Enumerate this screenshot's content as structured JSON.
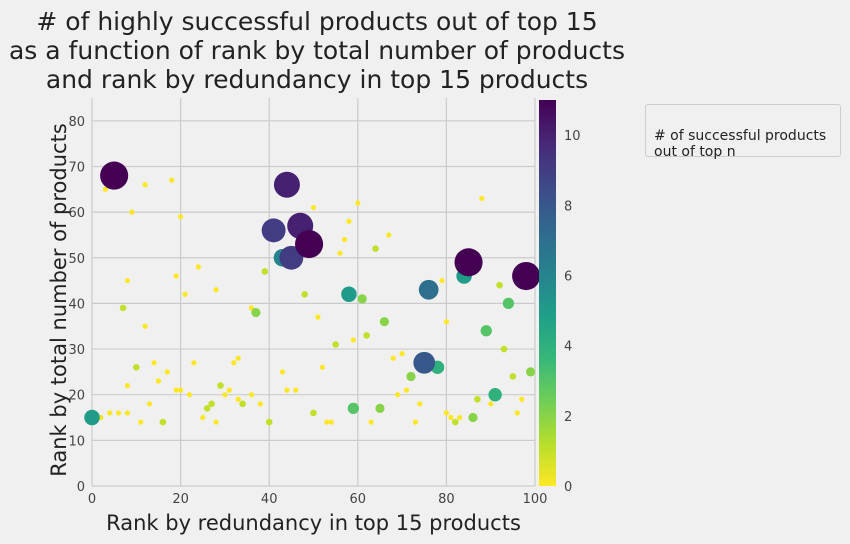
{
  "chart_data": {
    "type": "scatter",
    "title": "# of highly successful products out of top 15\nas a function of rank by total number of products\nand rank by redundancy in top 15 products",
    "xlabel": "Rank by redundancy in top 15 products",
    "ylabel": "Rank by total number of products",
    "xlim": [
      0,
      100
    ],
    "ylim": [
      0,
      85
    ],
    "xticks": [
      0,
      20,
      40,
      60,
      80,
      100
    ],
    "yticks": [
      0,
      10,
      20,
      30,
      40,
      50,
      60,
      70,
      80
    ],
    "grid": true,
    "colorbar": {
      "colormap": "viridis_r",
      "range": [
        0,
        11
      ],
      "ticks": [
        0,
        2,
        4,
        6,
        8,
        10
      ]
    },
    "legend": {
      "title": "# of successful products\n out of top n",
      "placement": "outside-right"
    },
    "points": [
      {
        "x": 5,
        "y": 68,
        "v": 11
      },
      {
        "x": 44,
        "y": 66,
        "v": 10
      },
      {
        "x": 41,
        "y": 56,
        "v": 9
      },
      {
        "x": 47,
        "y": 57,
        "v": 10
      },
      {
        "x": 49,
        "y": 53,
        "v": 11
      },
      {
        "x": 45,
        "y": 50,
        "v": 9
      },
      {
        "x": 43,
        "y": 50,
        "v": 6
      },
      {
        "x": 85,
        "y": 49,
        "v": 11
      },
      {
        "x": 98,
        "y": 46,
        "v": 11
      },
      {
        "x": 84,
        "y": 46,
        "v": 5
      },
      {
        "x": 76,
        "y": 43,
        "v": 7
      },
      {
        "x": 75,
        "y": 27,
        "v": 8
      },
      {
        "x": 58,
        "y": 42,
        "v": 5
      },
      {
        "x": 0,
        "y": 15,
        "v": 5
      },
      {
        "x": 78,
        "y": 26,
        "v": 4
      },
      {
        "x": 91,
        "y": 20,
        "v": 4
      },
      {
        "x": 94,
        "y": 40,
        "v": 3
      },
      {
        "x": 89,
        "y": 34,
        "v": 3
      },
      {
        "x": 61,
        "y": 41,
        "v": 2
      },
      {
        "x": 66,
        "y": 36,
        "v": 2
      },
      {
        "x": 72,
        "y": 24,
        "v": 2
      },
      {
        "x": 59,
        "y": 17,
        "v": 3
      },
      {
        "x": 65,
        "y": 17,
        "v": 2
      },
      {
        "x": 86,
        "y": 15,
        "v": 2
      },
      {
        "x": 99,
        "y": 25,
        "v": 2
      },
      {
        "x": 37,
        "y": 38,
        "v": 2
      },
      {
        "x": 3,
        "y": 65,
        "v": 0
      },
      {
        "x": 12,
        "y": 66,
        "v": 0
      },
      {
        "x": 18,
        "y": 67,
        "v": 0
      },
      {
        "x": 9,
        "y": 60,
        "v": 0
      },
      {
        "x": 20,
        "y": 59,
        "v": 0
      },
      {
        "x": 45,
        "y": 64,
        "v": 0
      },
      {
        "x": 50,
        "y": 61,
        "v": 0
      },
      {
        "x": 60,
        "y": 62,
        "v": 0
      },
      {
        "x": 58,
        "y": 58,
        "v": 0
      },
      {
        "x": 67,
        "y": 55,
        "v": 0
      },
      {
        "x": 64,
        "y": 52,
        "v": 1
      },
      {
        "x": 57,
        "y": 54,
        "v": 0
      },
      {
        "x": 56,
        "y": 51,
        "v": 0
      },
      {
        "x": 24,
        "y": 48,
        "v": 0
      },
      {
        "x": 19,
        "y": 46,
        "v": 0
      },
      {
        "x": 8,
        "y": 45,
        "v": 0
      },
      {
        "x": 28,
        "y": 43,
        "v": 0
      },
      {
        "x": 21,
        "y": 42,
        "v": 0
      },
      {
        "x": 39,
        "y": 47,
        "v": 1
      },
      {
        "x": 48,
        "y": 42,
        "v": 1
      },
      {
        "x": 7,
        "y": 39,
        "v": 1
      },
      {
        "x": 36,
        "y": 39,
        "v": 0
      },
      {
        "x": 51,
        "y": 37,
        "v": 0
      },
      {
        "x": 12,
        "y": 35,
        "v": 0
      },
      {
        "x": 55,
        "y": 31,
        "v": 1
      },
      {
        "x": 59,
        "y": 32,
        "v": 0
      },
      {
        "x": 62,
        "y": 33,
        "v": 1
      },
      {
        "x": 80,
        "y": 36,
        "v": 0
      },
      {
        "x": 92,
        "y": 44,
        "v": 1
      },
      {
        "x": 88,
        "y": 63,
        "v": 0
      },
      {
        "x": 93,
        "y": 30,
        "v": 1
      },
      {
        "x": 70,
        "y": 29,
        "v": 0
      },
      {
        "x": 68,
        "y": 28,
        "v": 0
      },
      {
        "x": 79,
        "y": 45,
        "v": 0
      },
      {
        "x": 10,
        "y": 26,
        "v": 1
      },
      {
        "x": 14,
        "y": 27,
        "v": 0
      },
      {
        "x": 17,
        "y": 25,
        "v": 0
      },
      {
        "x": 23,
        "y": 27,
        "v": 0
      },
      {
        "x": 32,
        "y": 27,
        "v": 0
      },
      {
        "x": 33,
        "y": 28,
        "v": 0
      },
      {
        "x": 43,
        "y": 25,
        "v": 0
      },
      {
        "x": 52,
        "y": 26,
        "v": 0
      },
      {
        "x": 15,
        "y": 23,
        "v": 0
      },
      {
        "x": 8,
        "y": 22,
        "v": 0
      },
      {
        "x": 19,
        "y": 21,
        "v": 0
      },
      {
        "x": 20,
        "y": 21,
        "v": 0
      },
      {
        "x": 29,
        "y": 22,
        "v": 1
      },
      {
        "x": 31,
        "y": 21,
        "v": 0
      },
      {
        "x": 44,
        "y": 21,
        "v": 0
      },
      {
        "x": 46,
        "y": 21,
        "v": 0
      },
      {
        "x": 22,
        "y": 20,
        "v": 0
      },
      {
        "x": 30,
        "y": 20,
        "v": 0
      },
      {
        "x": 36,
        "y": 20,
        "v": 0
      },
      {
        "x": 33,
        "y": 19,
        "v": 0
      },
      {
        "x": 34,
        "y": 18,
        "v": 1
      },
      {
        "x": 38,
        "y": 18,
        "v": 0
      },
      {
        "x": 13,
        "y": 18,
        "v": 0
      },
      {
        "x": 27,
        "y": 18,
        "v": 1
      },
      {
        "x": 26,
        "y": 17,
        "v": 1
      },
      {
        "x": 4,
        "y": 16,
        "v": 0
      },
      {
        "x": 6,
        "y": 16,
        "v": 0
      },
      {
        "x": 8,
        "y": 16,
        "v": 0
      },
      {
        "x": 25,
        "y": 15,
        "v": 0
      },
      {
        "x": 2,
        "y": 15,
        "v": 0
      },
      {
        "x": 11,
        "y": 14,
        "v": 0
      },
      {
        "x": 16,
        "y": 14,
        "v": 1
      },
      {
        "x": 28,
        "y": 14,
        "v": 0
      },
      {
        "x": 40,
        "y": 14,
        "v": 1
      },
      {
        "x": 53,
        "y": 14,
        "v": 0
      },
      {
        "x": 54,
        "y": 14,
        "v": 0
      },
      {
        "x": 50,
        "y": 16,
        "v": 1
      },
      {
        "x": 63,
        "y": 14,
        "v": 0
      },
      {
        "x": 73,
        "y": 14,
        "v": 0
      },
      {
        "x": 80,
        "y": 16,
        "v": 0
      },
      {
        "x": 81,
        "y": 15,
        "v": 0
      },
      {
        "x": 82,
        "y": 14,
        "v": 1
      },
      {
        "x": 83,
        "y": 15,
        "v": 0
      },
      {
        "x": 87,
        "y": 19,
        "v": 1
      },
      {
        "x": 90,
        "y": 18,
        "v": 0
      },
      {
        "x": 95,
        "y": 24,
        "v": 1
      },
      {
        "x": 96,
        "y": 16,
        "v": 0
      },
      {
        "x": 97,
        "y": 19,
        "v": 0
      },
      {
        "x": 69,
        "y": 20,
        "v": 0
      },
      {
        "x": 71,
        "y": 21,
        "v": 0
      },
      {
        "x": 74,
        "y": 18,
        "v": 0
      }
    ]
  }
}
